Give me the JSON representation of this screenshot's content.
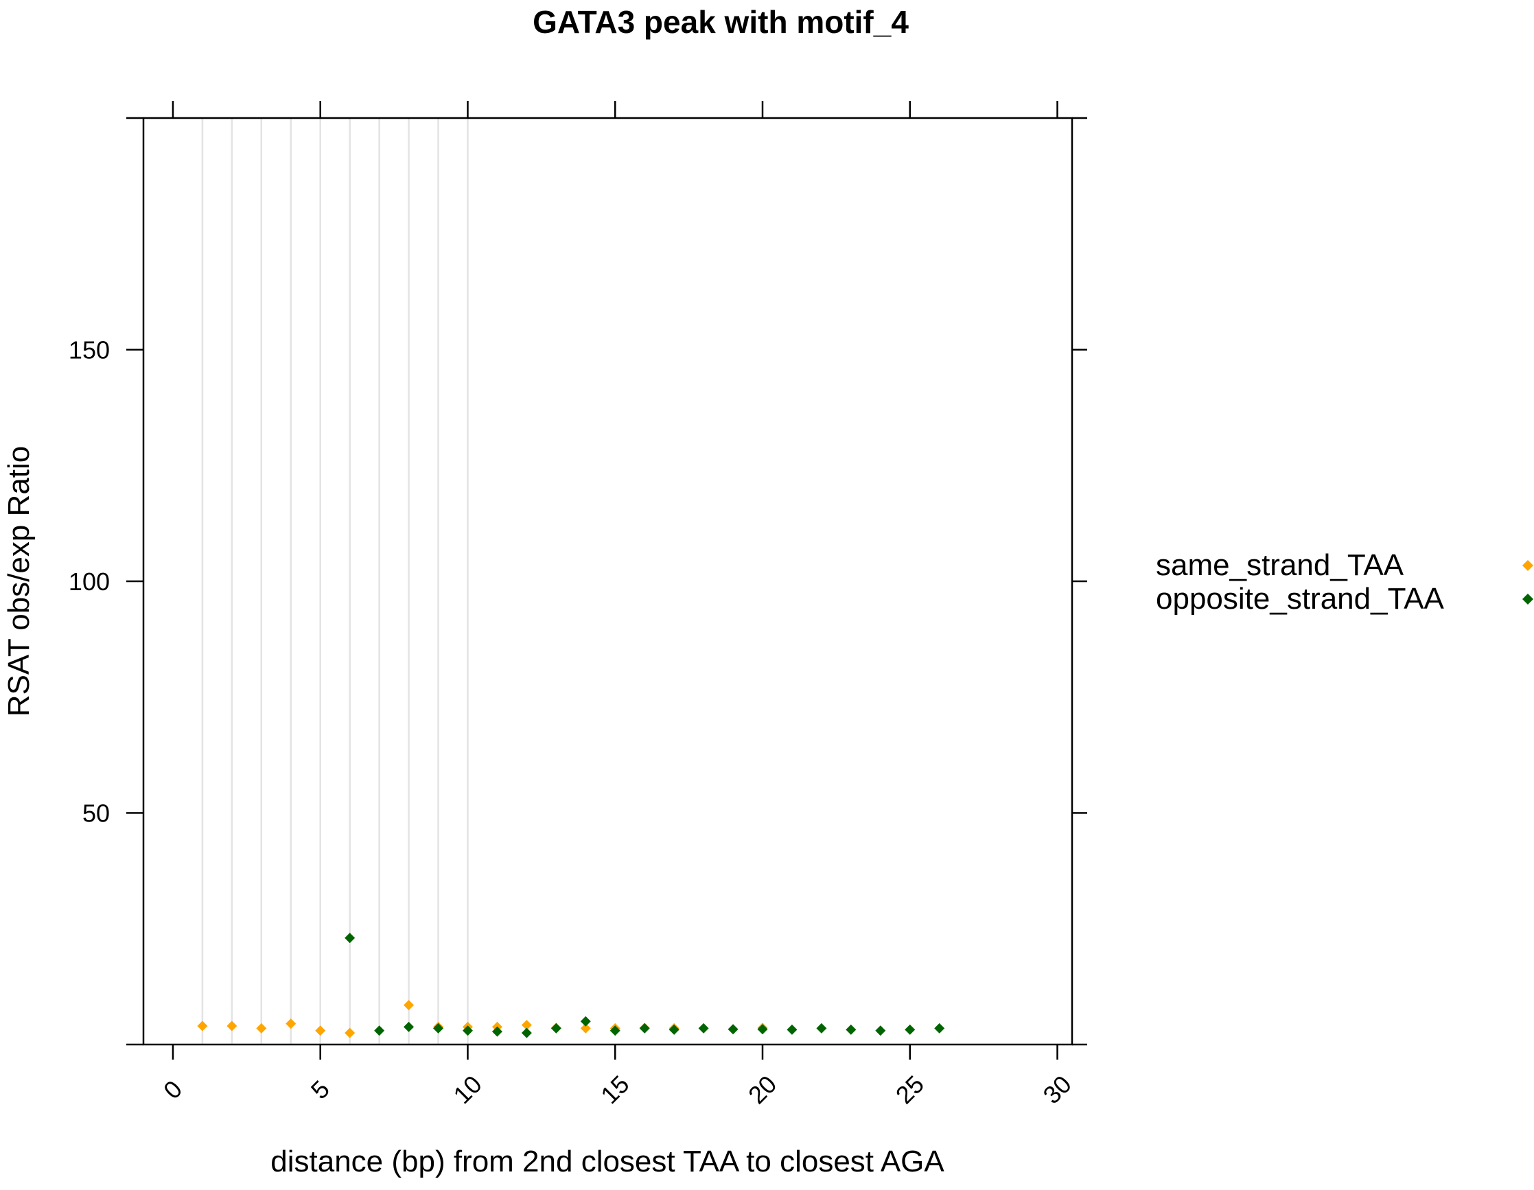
{
  "chart_data": {
    "type": "scatter",
    "title": "GATA3 peak with motif_4",
    "xlabel": "distance (bp) from 2nd closest TAA to closest AGA",
    "ylabel": "RSAT obs/exp Ratio",
    "xlim": [
      -1,
      30.5
    ],
    "ylim": [
      0,
      200
    ],
    "x_ticks": [
      0,
      5,
      10,
      15,
      20,
      25,
      30
    ],
    "y_ticks": [
      50,
      100,
      150
    ],
    "grid_x": [
      1,
      2,
      3,
      4,
      5,
      6,
      7,
      8,
      9,
      10
    ],
    "legend_position": "right",
    "series": [
      {
        "name": "same_strand_TAA",
        "color": "#FFA500",
        "marker": "diamond",
        "points": [
          [
            1,
            4.0
          ],
          [
            2,
            4.0
          ],
          [
            3,
            3.5
          ],
          [
            4,
            4.5
          ],
          [
            5,
            3.0
          ],
          [
            6,
            2.5
          ],
          [
            8,
            8.5
          ],
          [
            9,
            3.8
          ],
          [
            10,
            3.8
          ],
          [
            11,
            3.8
          ],
          [
            12,
            4.2
          ],
          [
            13,
            3.6
          ],
          [
            14,
            3.5
          ],
          [
            15,
            3.5
          ],
          [
            16,
            3.6
          ],
          [
            17,
            3.5
          ],
          [
            20,
            3.6
          ]
        ]
      },
      {
        "name": "opposite_strand_TAA",
        "color": "#006400",
        "marker": "diamond",
        "points": [
          [
            6,
            23.0
          ],
          [
            7,
            3.0
          ],
          [
            8,
            3.8
          ],
          [
            9,
            3.5
          ],
          [
            10,
            3.0
          ],
          [
            11,
            2.8
          ],
          [
            12,
            2.5
          ],
          [
            13,
            3.5
          ],
          [
            14,
            5.0
          ],
          [
            15,
            3.0
          ],
          [
            16,
            3.5
          ],
          [
            17,
            3.2
          ],
          [
            18,
            3.5
          ],
          [
            19,
            3.3
          ],
          [
            20,
            3.3
          ],
          [
            21,
            3.2
          ],
          [
            22,
            3.5
          ],
          [
            23,
            3.2
          ],
          [
            24,
            3.0
          ],
          [
            25,
            3.2
          ],
          [
            26,
            3.5
          ]
        ]
      }
    ]
  }
}
